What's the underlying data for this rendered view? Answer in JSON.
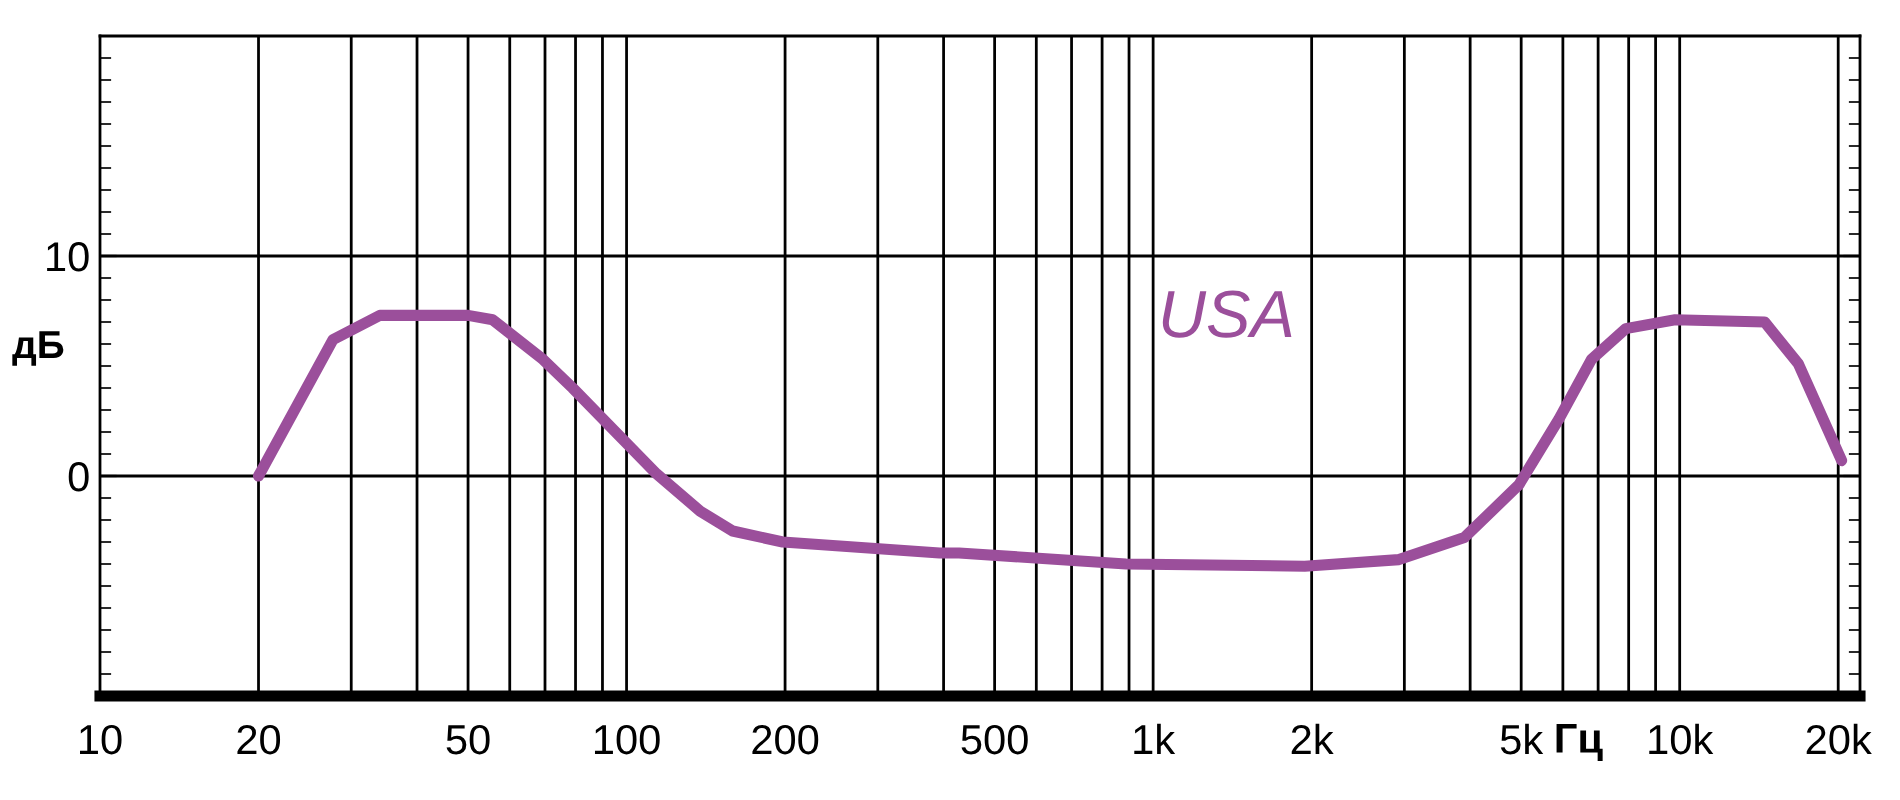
{
  "chart_data": {
    "type": "line",
    "xlabel": "Гц",
    "ylabel": "дБ",
    "annotations": [
      "USA"
    ],
    "log": "x",
    "grid": true,
    "marker": "none",
    "line_style": "solid",
    "xlim": [
      10,
      22000
    ],
    "ylim": [
      -10,
      20
    ],
    "xticks": [
      10,
      20,
      {
        "value": 30,
        "label": null
      },
      {
        "value": 40,
        "label": null
      },
      50,
      {
        "value": 60,
        "label": null
      },
      {
        "value": 70,
        "label": null
      },
      {
        "value": 80,
        "label": null
      },
      {
        "value": 90,
        "label": null
      },
      100,
      200,
      {
        "value": 300,
        "label": null
      },
      {
        "value": 400,
        "label": null
      },
      500,
      {
        "value": 600,
        "label": null
      },
      {
        "value": 700,
        "label": null
      },
      {
        "value": 800,
        "label": null
      },
      {
        "value": 900,
        "label": null
      },
      {
        "value": 1000,
        "label": "1k"
      },
      {
        "value": 2000,
        "label": "2k"
      },
      {
        "value": 3000,
        "label": null
      },
      {
        "value": 4000,
        "label": null
      },
      {
        "value": 5000,
        "label": "5k"
      },
      {
        "value": 6000,
        "label": null
      },
      {
        "value": 7000,
        "label": null
      },
      {
        "value": 8000,
        "label": null
      },
      {
        "value": 9000,
        "label": null
      },
      {
        "value": 10000,
        "label": "10k"
      },
      {
        "value": 20000,
        "label": "20k"
      }
    ],
    "yticks": [
      0,
      10
    ],
    "series": [
      {
        "color": "#9b4f9b",
        "x": [
          20,
          27.7,
          34,
          50,
          55.7,
          69.4,
          79,
          99,
          114,
          138,
          159,
          198,
          393,
          428,
          888,
          1940,
          2930,
          3900,
          4950,
          5900,
          6800,
          7900,
          9800,
          14500,
          16800,
          20300
        ],
        "values": [
          0,
          6.2,
          7.3,
          7.3,
          7.1,
          5.3,
          4.0,
          1.6,
          0.1,
          -1.6,
          -2.5,
          -3.0,
          -3.5,
          -3.5,
          -4.0,
          -4.1,
          -3.8,
          -2.8,
          -0.4,
          2.6,
          5.3,
          6.7,
          7.1,
          7.0,
          5.1,
          0.7
        ]
      }
    ]
  }
}
